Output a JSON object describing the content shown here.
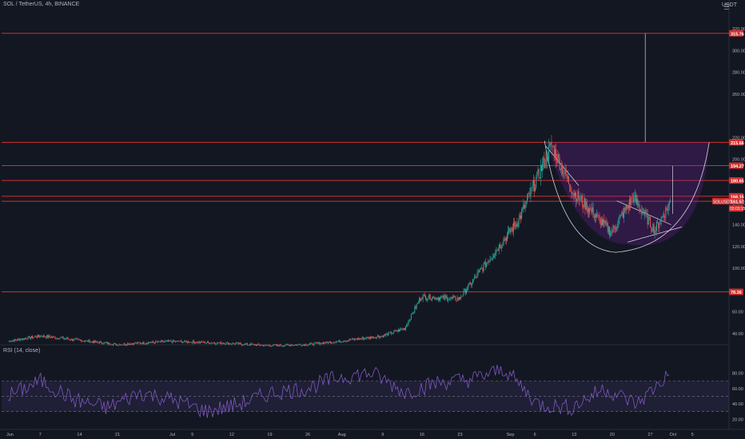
{
  "header": {
    "symbol": "SOL / TetherUS, 4h, BINANCE",
    "currency": "USDT"
  },
  "indicator": {
    "title": "RSI (14, close)"
  },
  "colors": {
    "background": "#131722",
    "grid": "#1c2030",
    "up_candle": "#26a69a",
    "down_candle": "#ef5350",
    "level_line": "#d32f2f",
    "cup_fill": "#7b1fa2",
    "rsi_line": "#7e57c2",
    "text": "#b2b5be"
  },
  "price_axis": {
    "ticks": [
      "320.00",
      "300.00",
      "280.00",
      "260.00",
      "220.00",
      "200.00",
      "160.00",
      "140.00",
      "120.00",
      "100.00",
      "60.00",
      "40.00"
    ]
  },
  "rsi_axis": {
    "ticks": [
      "80.00",
      "60.00",
      "40.00",
      "20.00"
    ]
  },
  "level_labels": [
    {
      "value": "315.76",
      "price": 315.76
    },
    {
      "value": "215.66",
      "price": 215.66
    },
    {
      "value": "194.27",
      "price": 194.27
    },
    {
      "value": "180.65",
      "price": 180.65
    },
    {
      "value": "166.15",
      "price": 166.15
    },
    {
      "value": "161.57",
      "price": 161.57
    },
    {
      "value": "78.36",
      "price": 78.36
    }
  ],
  "current_price": {
    "symbol": "SOLUSDT",
    "value": "161.57",
    "countdown": "03:03:15"
  },
  "time_axis": {
    "labels": [
      "Jun",
      "7",
      "14",
      "21",
      "Jul",
      "5",
      "12",
      "19",
      "26",
      "Aug",
      "9",
      "16",
      "23",
      "Sep",
      "6",
      "13",
      "20",
      "27",
      "Oct",
      "5"
    ]
  },
  "chart_data": {
    "type": "candlestick",
    "series": [
      {
        "name": "SOL / TetherUS, 4h, BINANCE",
        "values": [
          {
            "month": "Jun",
            "day": 1,
            "close": 33
          },
          {
            "month": "Jun",
            "day": 7,
            "close": 38
          },
          {
            "month": "Jun",
            "day": 14,
            "close": 34
          },
          {
            "month": "Jun",
            "day": 21,
            "close": 30
          },
          {
            "month": "Jul",
            "day": 1,
            "close": 33
          },
          {
            "month": "Jul",
            "day": 12,
            "close": 31
          },
          {
            "month": "Jul",
            "day": 19,
            "close": 29
          },
          {
            "month": "Jul",
            "day": 26,
            "close": 30
          },
          {
            "month": "Aug",
            "day": 1,
            "close": 33
          },
          {
            "month": "Aug",
            "day": 9,
            "close": 38
          },
          {
            "month": "Aug",
            "day": 13,
            "close": 45
          },
          {
            "month": "Aug",
            "day": 16,
            "close": 74
          },
          {
            "month": "Aug",
            "day": 23,
            "close": 72
          },
          {
            "month": "Aug",
            "day": 30,
            "close": 118
          },
          {
            "month": "Sep",
            "day": 3,
            "close": 145
          },
          {
            "month": "Sep",
            "day": 9,
            "close": 213
          },
          {
            "month": "Sep",
            "day": 13,
            "close": 170
          },
          {
            "month": "Sep",
            "day": 20,
            "close": 133
          },
          {
            "month": "Sep",
            "day": 24,
            "close": 165
          },
          {
            "month": "Sep",
            "day": 28,
            "close": 135
          },
          {
            "month": "Oct",
            "day": 1,
            "close": 161.57
          }
        ]
      },
      {
        "name": "RSI (14, close)",
        "values": [
          50,
          70,
          45,
          35,
          55,
          45,
          30,
          40,
          55,
          60,
          75,
          80,
          55,
          68,
          72,
          85,
          40,
          35,
          60,
          40,
          80
        ]
      }
    ],
    "ylim": [
      20,
      320
    ],
    "rsi_ylim": [
      10,
      95
    ],
    "rsi_levels": [
      70,
      50,
      30
    ],
    "grid": false,
    "legend": "none"
  }
}
